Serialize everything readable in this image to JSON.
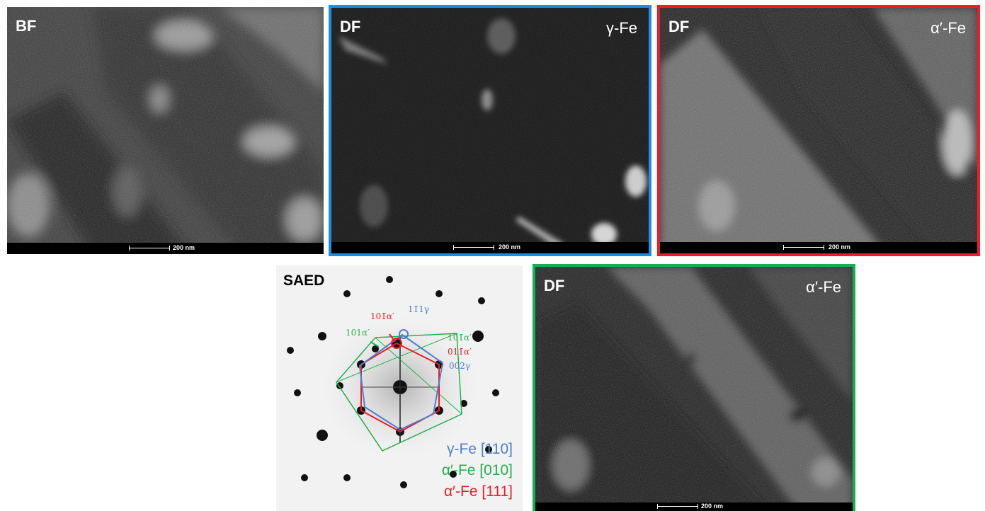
{
  "panels": {
    "bf": {
      "label": "BF",
      "scale": "200 nm"
    },
    "df_gamma": {
      "label": "DF",
      "phase": "γ-Fe",
      "scale": "200 nm",
      "border": "#1a8fe0"
    },
    "df_alpha_top": {
      "label": "DF",
      "phase": "α′-Fe",
      "scale": "200 nm",
      "border": "#ee1c24"
    },
    "df_alpha_bottom": {
      "label": "DF",
      "phase": "α′-Fe",
      "scale": "200 nm",
      "border": "#14b050"
    }
  },
  "saed": {
    "title": "SAED",
    "indices": {
      "i101_red": "101̄α′",
      "i111_blue": "11̄1γ",
      "i101_green_left": "101α′",
      "i101_green_right": "101̄α′",
      "i011_red": "011̄α′",
      "i002_blue": "002γ"
    },
    "legend": {
      "gamma": "γ-Fe [110]",
      "alpha010": "α′-Fe [010]",
      "alpha111": "α′-Fe [111]"
    },
    "colors": {
      "blue": "#4a7fd0",
      "green": "#22b14c",
      "red": "#ee1c24"
    }
  }
}
